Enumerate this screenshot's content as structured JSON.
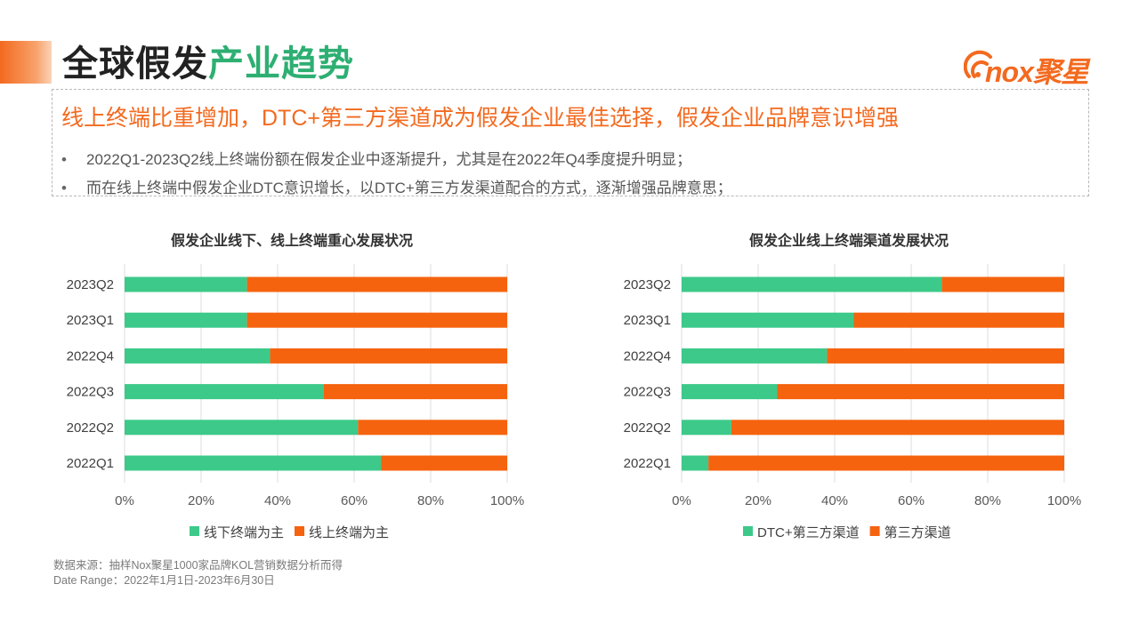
{
  "header": {
    "title_part1": "全球假发",
    "title_part2": "产业趋势",
    "logo_text": "nox聚星"
  },
  "callout": {
    "title": "线上终端比重增加，DTC+第三方渠道成为假发企业最佳选择，假发企业品牌意识增强",
    "bullet_symbol": "•",
    "bullets": [
      "2022Q1-2023Q2线上终端份额在假发企业中逐渐提升，尤其是在2022年Q4季度提升明显；",
      "而在线上终端中假发企业DTC意识增长，以DTC+第三方发渠道配合的方式，逐渐增强品牌意思；"
    ]
  },
  "chart_data": [
    {
      "type": "bar",
      "orientation": "horizontal",
      "stacked": "percent",
      "title": "假发企业线下、线上终端重心发展状况",
      "categories": [
        "2023Q2",
        "2023Q1",
        "2022Q4",
        "2022Q3",
        "2022Q2",
        "2022Q1"
      ],
      "series": [
        {
          "name": "线下终端为主",
          "color": "#3cc98a",
          "values": [
            32,
            32,
            38,
            52,
            61,
            67
          ]
        },
        {
          "name": "线上终端为主",
          "color": "#f5630f",
          "values": [
            68,
            68,
            62,
            48,
            39,
            33
          ]
        }
      ],
      "xticks": [
        "0%",
        "20%",
        "40%",
        "60%",
        "80%",
        "100%"
      ],
      "xlim": [
        0,
        100
      ],
      "grid": true,
      "legend": "bottom"
    },
    {
      "type": "bar",
      "orientation": "horizontal",
      "stacked": "percent",
      "title": "假发企业线上终端渠道发展状况",
      "categories": [
        "2023Q2",
        "2023Q1",
        "2022Q4",
        "2022Q3",
        "2022Q2",
        "2022Q1"
      ],
      "series": [
        {
          "name": "DTC+第三方渠道",
          "color": "#3cc98a",
          "values": [
            68,
            45,
            38,
            25,
            13,
            7
          ]
        },
        {
          "name": "第三方渠道",
          "color": "#f5630f",
          "values": [
            32,
            55,
            62,
            75,
            87,
            93
          ]
        }
      ],
      "xticks": [
        "0%",
        "20%",
        "40%",
        "60%",
        "80%",
        "100%"
      ],
      "xlim": [
        0,
        100
      ],
      "grid": true,
      "legend": "bottom"
    }
  ],
  "source": {
    "line1": "数据来源：抽样Nox聚星1000家品牌KOL营销数据分析而得",
    "line2": "Date Range：2022年1月1日-2023年6月30日"
  }
}
